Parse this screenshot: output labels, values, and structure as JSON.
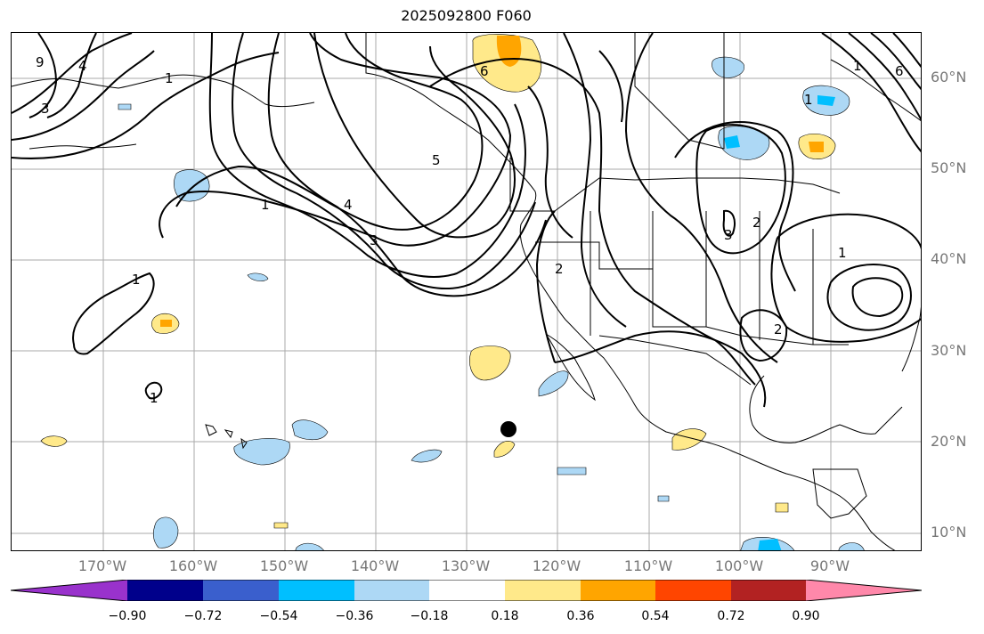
{
  "title": "2025092800 F060",
  "lat_labels": [
    "60°N",
    "50°N",
    "40°N",
    "30°N",
    "20°N",
    "10°N"
  ],
  "lon_labels": [
    "170°W",
    "160°W",
    "150°W",
    "140°W",
    "130°W",
    "120°W",
    "110°W",
    "100°W",
    "90°W"
  ],
  "colorbar": {
    "ticks": [
      "−0.90",
      "−0.72",
      "−0.54",
      "−0.36",
      "−0.18",
      "0.18",
      "0.36",
      "0.54",
      "0.72",
      "0.90"
    ],
    "colors": [
      "#9932cc",
      "#00008b",
      "#3a5fcd",
      "#00bfff",
      "#add8f5",
      "#ffffff",
      "#ffe98a",
      "#ffa500",
      "#ff4500",
      "#b22222",
      "#ff88aa"
    ]
  },
  "contour_labels": [
    "9",
    "4",
    "3",
    "1",
    "1",
    "4",
    "3",
    "5",
    "6",
    "1",
    "1",
    "2",
    "3",
    "2",
    "2",
    "1",
    "1",
    "6",
    "1"
  ],
  "marker": "black-dot"
}
